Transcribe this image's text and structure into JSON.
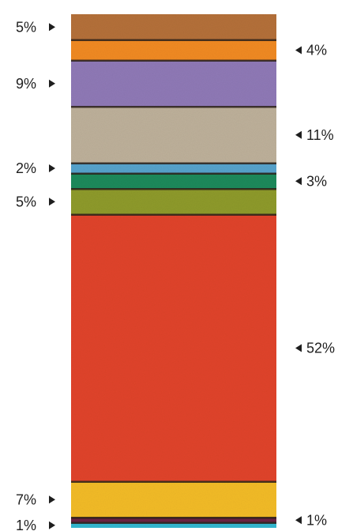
{
  "chart_data": {
    "type": "bar",
    "orientation": "stacked-single-column",
    "title": "",
    "xlabel": "",
    "ylabel": "",
    "segments": [
      {
        "label": "5%",
        "value": 5,
        "color": "#b4703a",
        "label_side": "left"
      },
      {
        "label": "4%",
        "value": 4,
        "color": "#f08a22",
        "label_side": "right"
      },
      {
        "label": "9%",
        "value": 9,
        "color": "#8f79b6",
        "label_side": "left"
      },
      {
        "label": "11%",
        "value": 11,
        "color": "#bdb09a",
        "label_side": "right"
      },
      {
        "label": "2%",
        "value": 2,
        "color": "#56a3cc",
        "label_side": "left"
      },
      {
        "label": "3%",
        "value": 3,
        "color": "#1f8a5b",
        "label_side": "right"
      },
      {
        "label": "5%",
        "value": 5,
        "color": "#8e9a2a",
        "label_side": "left"
      },
      {
        "label": "52%",
        "value": 52,
        "color": "#e0442a",
        "label_side": "right"
      },
      {
        "label": "7%",
        "value": 7,
        "color": "#f2bb28",
        "label_side": "left"
      },
      {
        "label": "1%",
        "value": 1,
        "color": "#6b2142",
        "label_side": "right"
      },
      {
        "label": "1%",
        "value": 1,
        "color": "#33b7cf",
        "label_side": "left"
      }
    ]
  }
}
